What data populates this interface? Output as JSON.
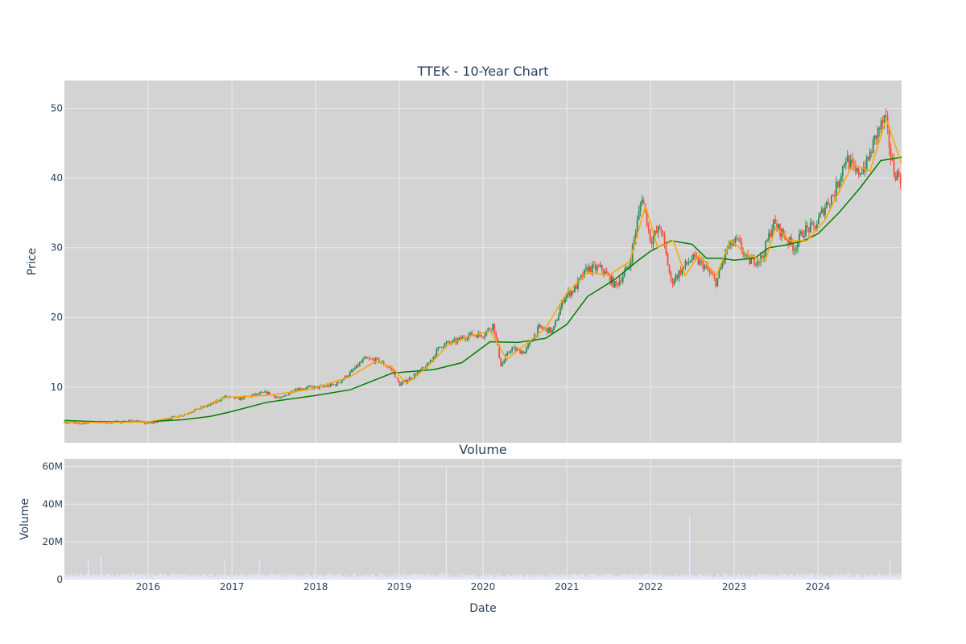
{
  "colors": {
    "background": "#d3d3d3",
    "grid": "#ebebeb",
    "text": "#2a3f5f",
    "candle_up": "#2e8b57",
    "candle_down": "#ff4c3b",
    "ma_short": "#ffa500",
    "ma_long": "#008000",
    "volume": "#e6e6fa"
  },
  "chart_data": [
    {
      "type": "line",
      "title": "TTEK - 10-Year Chart",
      "xlabel": "",
      "ylabel": "Price",
      "xlim": [
        "2015-01-01",
        "2024-12-31"
      ],
      "ylim": [
        2,
        54
      ],
      "yticks": [
        10,
        20,
        30,
        40,
        50
      ],
      "xticks": [
        "2016-01-01",
        "2017-01-01",
        "2018-01-01",
        "2019-01-01",
        "2020-01-01",
        "2021-01-01",
        "2022-01-01",
        "2023-01-01",
        "2024-01-01"
      ],
      "grid": true,
      "series": [
        {
          "role": "price",
          "x": [
            "2015-01-01",
            "2015-03-01",
            "2015-05-01",
            "2015-07-01",
            "2015-09-01",
            "2015-11-01",
            "2016-01-01",
            "2016-02-01",
            "2016-04-01",
            "2016-06-01",
            "2016-08-01",
            "2016-10-01",
            "2016-12-01",
            "2017-02-01",
            "2017-04-01",
            "2017-06-01",
            "2017-08-01",
            "2017-10-01",
            "2017-12-01",
            "2018-02-01",
            "2018-04-01",
            "2018-06-01",
            "2018-08-01",
            "2018-10-01",
            "2018-12-01",
            "2019-01-01",
            "2019-03-01",
            "2019-05-01",
            "2019-07-01",
            "2019-09-01",
            "2019-11-01",
            "2020-01-01",
            "2020-02-15",
            "2020-03-20",
            "2020-05-01",
            "2020-07-01",
            "2020-09-01",
            "2020-11-01",
            "2020-12-20",
            "2021-02-01",
            "2021-04-01",
            "2021-06-01",
            "2021-08-01",
            "2021-10-01",
            "2021-11-25",
            "2022-01-01",
            "2022-02-15",
            "2022-04-01",
            "2022-05-20",
            "2022-07-01",
            "2022-08-20",
            "2022-10-15",
            "2022-12-01",
            "2023-01-15",
            "2023-03-01",
            "2023-05-01",
            "2023-06-20",
            "2023-08-01",
            "2023-09-20",
            "2023-11-01",
            "2023-12-20",
            "2024-02-01",
            "2024-03-15",
            "2024-05-01",
            "2024-06-15",
            "2024-08-01",
            "2024-09-15",
            "2024-10-20",
            "2024-11-25",
            "2024-12-31"
          ],
          "values": [
            5.0,
            4.7,
            5.0,
            4.9,
            5.0,
            5.2,
            4.7,
            5.0,
            5.5,
            6.0,
            6.8,
            7.5,
            8.6,
            8.3,
            8.8,
            9.2,
            8.3,
            9.7,
            9.9,
            10.0,
            10.4,
            12.0,
            14.0,
            13.8,
            12.5,
            10.3,
            11.5,
            13.0,
            16.0,
            16.5,
            17.5,
            17.5,
            19.0,
            13.0,
            15.5,
            15.0,
            18.5,
            18.0,
            23.0,
            24.0,
            27.0,
            27.0,
            24.5,
            27.5,
            37.5,
            31.0,
            33.0,
            25.0,
            27.0,
            28.5,
            27.5,
            25.0,
            30.0,
            31.0,
            28.0,
            28.5,
            33.5,
            32.0,
            30.0,
            32.5,
            33.0,
            36.0,
            38.0,
            43.0,
            40.5,
            42.0,
            46.5,
            48.5,
            41.0,
            40.0
          ]
        },
        {
          "role": "moving-average-short",
          "x": [
            "2015-01-01",
            "2015-06-01",
            "2016-01-01",
            "2016-06-01",
            "2016-12-01",
            "2017-06-01",
            "2017-12-01",
            "2018-06-01",
            "2018-09-20",
            "2018-12-01",
            "2019-02-01",
            "2019-05-01",
            "2019-08-01",
            "2019-11-01",
            "2020-02-01",
            "2020-04-15",
            "2020-07-01",
            "2020-10-01",
            "2021-01-01",
            "2021-04-01",
            "2021-07-01",
            "2021-10-01",
            "2021-12-10",
            "2022-02-01",
            "2022-04-10",
            "2022-06-01",
            "2022-08-01",
            "2022-10-15",
            "2022-12-15",
            "2023-03-01",
            "2023-05-15",
            "2023-07-01",
            "2023-09-01",
            "2023-11-15",
            "2024-02-01",
            "2024-04-01",
            "2024-06-01",
            "2024-08-15",
            "2024-10-25",
            "2024-12-31"
          ],
          "values": [
            5.0,
            4.9,
            5.0,
            5.9,
            8.5,
            8.8,
            9.6,
            11.5,
            13.7,
            12.8,
            10.5,
            12.8,
            16.0,
            17.3,
            18.0,
            14.0,
            16.0,
            18.5,
            23.5,
            26.5,
            26.0,
            28.0,
            36.0,
            30.0,
            31.0,
            26.0,
            29.0,
            26.0,
            31.0,
            29.0,
            28.0,
            33.0,
            31.0,
            31.0,
            34.0,
            38.0,
            42.0,
            41.0,
            48.5,
            42.0
          ]
        },
        {
          "role": "moving-average-long",
          "x": [
            "2015-01-01",
            "2015-06-01",
            "2016-01-01",
            "2016-06-01",
            "2016-10-01",
            "2017-01-01",
            "2017-06-01",
            "2018-01-01",
            "2018-06-01",
            "2018-12-01",
            "2019-06-01",
            "2019-10-01",
            "2020-02-01",
            "2020-06-01",
            "2020-10-01",
            "2021-01-01",
            "2021-04-01",
            "2021-08-01",
            "2021-11-01",
            "2022-01-01",
            "2022-04-01",
            "2022-07-01",
            "2022-09-01",
            "2022-11-01",
            "2023-01-01",
            "2023-04-01",
            "2023-06-01",
            "2023-08-01",
            "2023-11-01",
            "2024-01-01",
            "2024-04-01",
            "2024-07-01",
            "2024-10-01",
            "2024-12-31"
          ],
          "values": [
            5.2,
            5.0,
            5.0,
            5.3,
            5.8,
            6.5,
            7.8,
            8.8,
            9.6,
            12.0,
            12.5,
            13.5,
            16.5,
            16.4,
            17.0,
            19.0,
            23.0,
            25.5,
            28.0,
            29.5,
            31.0,
            30.5,
            28.5,
            28.5,
            28.2,
            28.5,
            30.0,
            30.3,
            31.0,
            32.0,
            35.0,
            38.5,
            42.5,
            43.0
          ]
        }
      ]
    },
    {
      "type": "bar",
      "title": "Volume",
      "xlabel": "Date",
      "ylabel": "Volume",
      "xlim": [
        "2015-01-01",
        "2024-12-31"
      ],
      "ylim": [
        0,
        64000000
      ],
      "yticks": [
        0,
        20000000,
        40000000,
        60000000
      ],
      "ytick_labels": [
        "0",
        "20M",
        "40M",
        "60M"
      ],
      "xticks": [
        "2016-01-01",
        "2017-01-01",
        "2018-01-01",
        "2019-01-01",
        "2020-01-01",
        "2021-01-01",
        "2022-01-01",
        "2023-01-01",
        "2024-01-01"
      ],
      "xtick_labels": [
        "2016",
        "2017",
        "2018",
        "2019",
        "2020",
        "2021",
        "2022",
        "2023",
        "2024"
      ],
      "grid": true,
      "spikes": [
        {
          "x": "2015-04-15",
          "value": 11000000
        },
        {
          "x": "2015-06-10",
          "value": 12000000
        },
        {
          "x": "2016-12-01",
          "value": 10000000
        },
        {
          "x": "2017-05-01",
          "value": 10000000
        },
        {
          "x": "2019-07-25",
          "value": 60000000
        },
        {
          "x": "2022-06-20",
          "value": 34000000
        },
        {
          "x": "2024-11-10",
          "value": 10000000
        }
      ],
      "baseline_volume": 2000000
    }
  ]
}
